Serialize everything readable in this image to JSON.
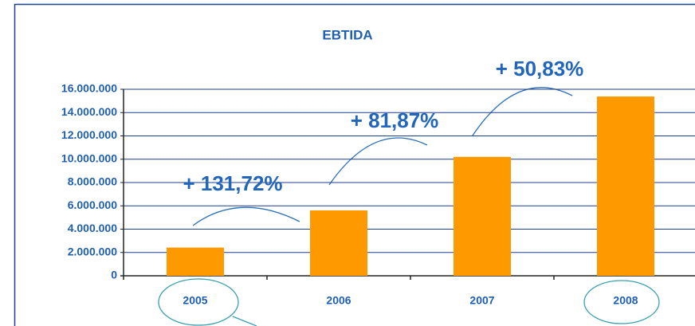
{
  "chart_data": {
    "type": "bar",
    "title": "EBTIDA",
    "categories": [
      "2005",
      "2006",
      "2007",
      "2008"
    ],
    "values": [
      2420000,
      5610000,
      10200000,
      15380000
    ],
    "color": "#ff9900",
    "ylim": [
      0,
      16000000
    ],
    "yticks": [
      0,
      {
        "value": 2000000,
        "label": "2.000.000"
      },
      {
        "value": 4000000,
        "label": "4.000.000"
      },
      {
        "value": 6000000,
        "label": "6.000.000"
      },
      {
        "value": 8000000,
        "label": "8.000.000"
      },
      {
        "value": 10000000,
        "label": "10.000.000"
      },
      {
        "value": 12000000,
        "label": "12.000.000"
      },
      {
        "value": 14000000,
        "label": "14.000.000"
      },
      {
        "value": 16000000,
        "label": "16.000.000"
      }
    ],
    "grid": true,
    "annotations": [
      "+ 131,72%",
      "+ 81,87%",
      "+ 50,83%"
    ]
  }
}
